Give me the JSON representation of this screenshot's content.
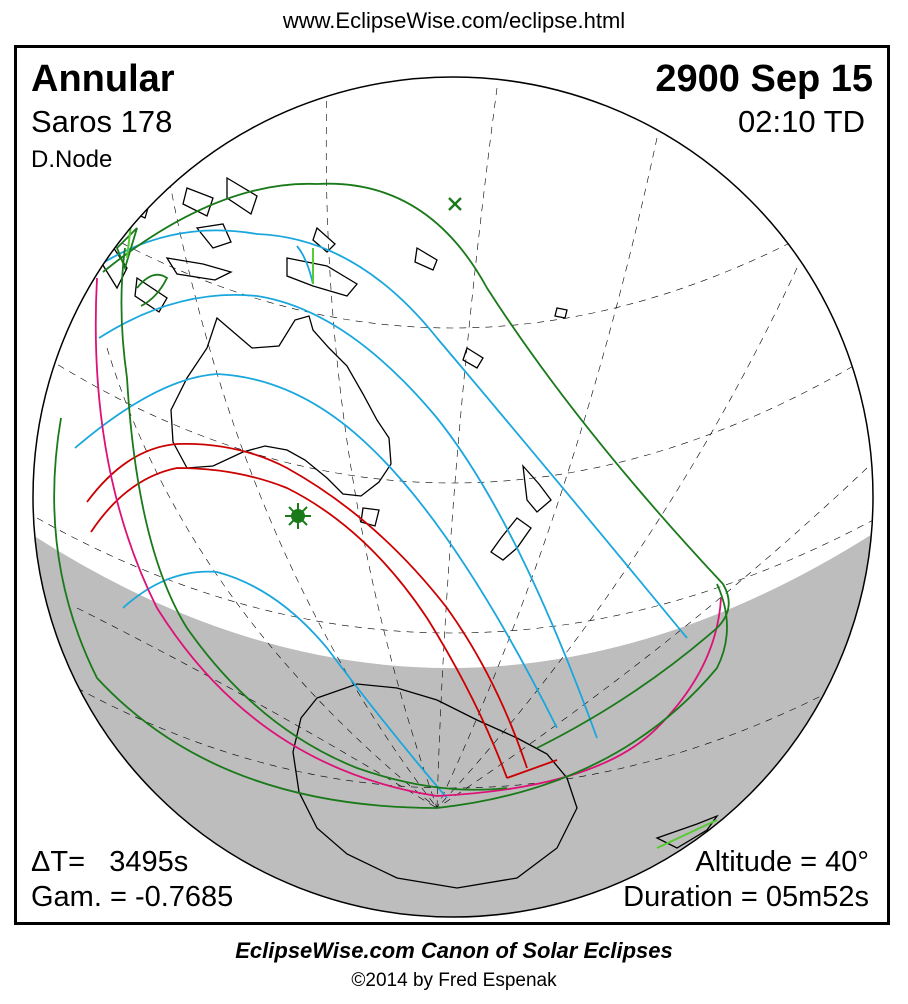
{
  "header": {
    "url": "www.EclipseWise.com/eclipse.html"
  },
  "eclipse": {
    "type": "Annular",
    "saros": "Saros 178",
    "node": "D.Node",
    "date": "2900 Sep 15",
    "time": "02:10 TD",
    "delta_t": "ΔT=   3495s",
    "gamma": "Gam. = -0.7685",
    "altitude": "Altitude = 40°",
    "duration": "Duration = 05m52s"
  },
  "footer": {
    "canon": "EclipseWise.com Canon of Solar Eclipses",
    "copyright": "©2014 by Fred Espenak"
  },
  "colors": {
    "penumbral_limits": "#1a7a1a",
    "umbral_path": "#cc0000",
    "magnitude_curves": "#1aa7dd",
    "rise_set_curves": "#dd1177",
    "night_side": "#bdbdbd",
    "coastlines": "#000000",
    "graticule": "#000000"
  },
  "markers": {
    "greatest_eclipse": "sun-star-icon",
    "subsolar_point": "cross-icon"
  }
}
